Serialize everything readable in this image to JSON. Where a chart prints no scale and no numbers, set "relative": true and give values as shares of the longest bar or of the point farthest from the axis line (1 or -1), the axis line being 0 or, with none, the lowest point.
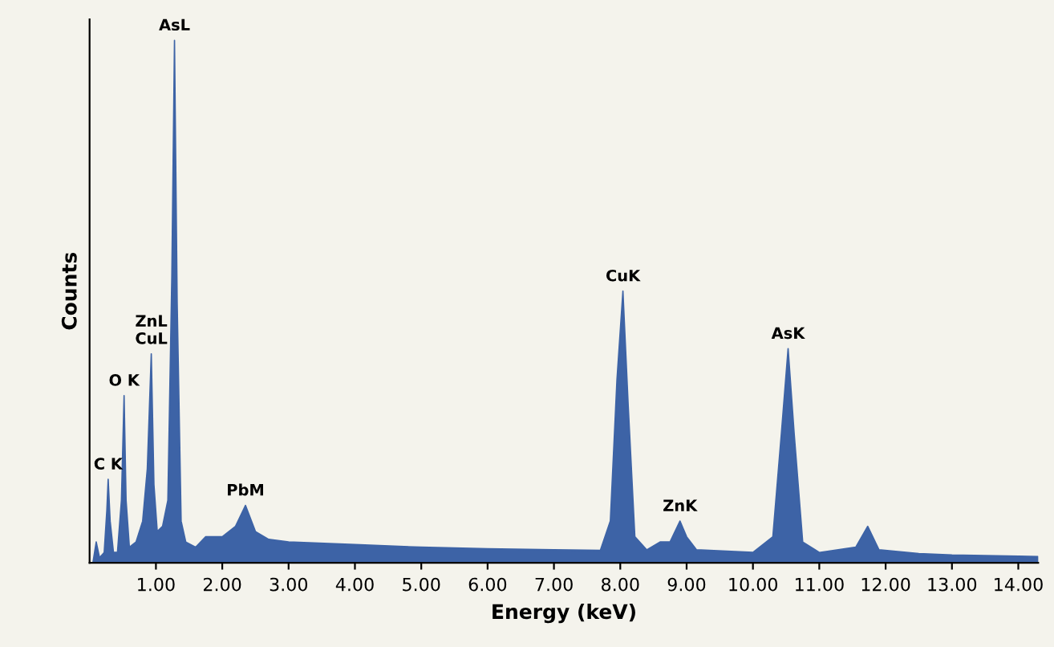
{
  "chart_data": {
    "type": "area",
    "relative": true,
    "xlabel": "Energy (keV)",
    "ylabel": "Counts",
    "xlim": [
      0,
      14.3
    ],
    "xticks": [
      {
        "value": 1,
        "label": "1.00"
      },
      {
        "value": 2,
        "label": "2.00"
      },
      {
        "value": 3,
        "label": "3.00"
      },
      {
        "value": 4,
        "label": "4.00"
      },
      {
        "value": 5,
        "label": "5.00"
      },
      {
        "value": 6,
        "label": "6.00"
      },
      {
        "value": 7,
        "label": "7.00"
      },
      {
        "value": 8,
        "label": "8.00"
      },
      {
        "value": 9,
        "label": "9.00"
      },
      {
        "value": 10,
        "label": "10.00"
      },
      {
        "value": 11,
        "label": "11.00"
      },
      {
        "value": 12,
        "label": "12.00"
      },
      {
        "value": 13,
        "label": "13.00"
      },
      {
        "value": 14,
        "label": "14.00"
      }
    ],
    "series": [
      {
        "color": "#3d63a6",
        "x": [
          0.05,
          0.1,
          0.15,
          0.22,
          0.26,
          0.28,
          0.31,
          0.36,
          0.42,
          0.48,
          0.52,
          0.55,
          0.6,
          0.7,
          0.8,
          0.87,
          0.93,
          0.97,
          1.02,
          1.1,
          1.18,
          1.24,
          1.28,
          1.32,
          1.38,
          1.45,
          1.6,
          1.75,
          2.0,
          2.2,
          2.35,
          2.5,
          2.7,
          3.0,
          4.0,
          5.0,
          6.0,
          7.0,
          7.7,
          7.85,
          7.95,
          8.04,
          8.12,
          8.22,
          8.4,
          8.6,
          8.75,
          8.9,
          9.0,
          9.15,
          10.0,
          10.3,
          10.43,
          10.53,
          10.62,
          10.75,
          11.0,
          11.55,
          11.73,
          11.9,
          12.5,
          13.0,
          14.0,
          14.3
        ],
        "values": [
          0.0,
          0.04,
          0.01,
          0.02,
          0.1,
          0.16,
          0.08,
          0.02,
          0.02,
          0.12,
          0.32,
          0.12,
          0.03,
          0.04,
          0.08,
          0.18,
          0.4,
          0.15,
          0.06,
          0.07,
          0.12,
          0.55,
          1.0,
          0.5,
          0.08,
          0.04,
          0.03,
          0.05,
          0.05,
          0.07,
          0.11,
          0.06,
          0.045,
          0.04,
          0.035,
          0.03,
          0.027,
          0.025,
          0.024,
          0.08,
          0.35,
          0.52,
          0.3,
          0.05,
          0.025,
          0.04,
          0.04,
          0.08,
          0.05,
          0.025,
          0.02,
          0.05,
          0.25,
          0.41,
          0.25,
          0.04,
          0.02,
          0.03,
          0.07,
          0.025,
          0.018,
          0.015,
          0.013,
          0.012
        ]
      }
    ],
    "annotations": [
      {
        "text": "C K",
        "x": 0.28,
        "y": 0.16
      },
      {
        "text": "O K",
        "x": 0.52,
        "y": 0.32
      },
      {
        "text": "ZnL\nCuL",
        "x": 0.93,
        "y": 0.4
      },
      {
        "text": "AsL",
        "x": 1.28,
        "y": 1.0
      },
      {
        "text": "PbM",
        "x": 2.35,
        "y": 0.11
      },
      {
        "text": "CuK",
        "x": 8.04,
        "y": 0.52
      },
      {
        "text": "ZnK",
        "x": 8.9,
        "y": 0.08
      },
      {
        "text": "AsK",
        "x": 10.53,
        "y": 0.41
      }
    ]
  }
}
